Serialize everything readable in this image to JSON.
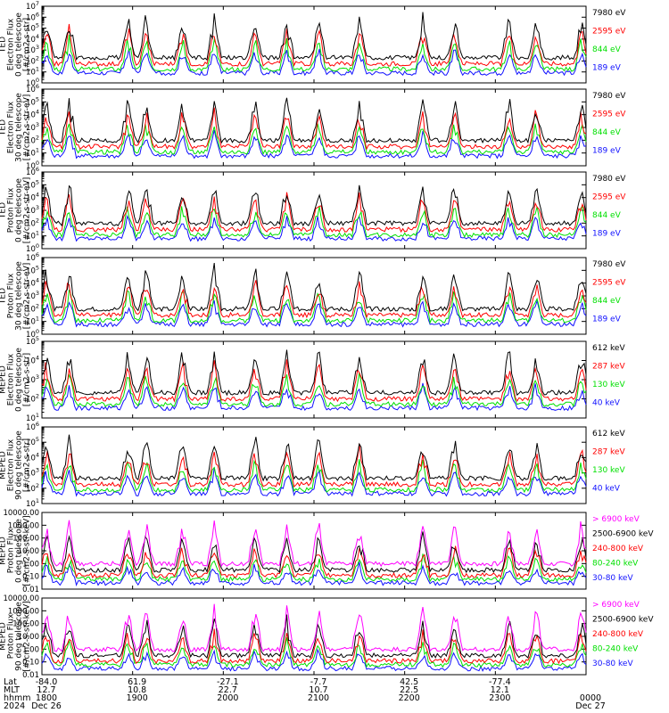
{
  "colors": {
    "blue": "#1010ff",
    "red": "#ff0000",
    "green": "#00e000",
    "black": "#000000",
    "magenta": "#ff00ff"
  },
  "panels": [
    {
      "ylabel": [
        "TED",
        "Electron Flux",
        "0 deg telescope",
        "[#/cm2-s-str]"
      ],
      "yticks": [
        "10^0",
        "10^1",
        "10^2",
        "10^3",
        "10^4",
        "10^5",
        "10^6",
        "10^7"
      ],
      "legend": [
        {
          "text": "7980 eV",
          "color": "black"
        },
        {
          "text": "2595 eV",
          "color": "red"
        },
        {
          "text": "844 eV",
          "color": "green"
        },
        {
          "text": "189 eV",
          "color": "blue"
        }
      ]
    },
    {
      "ylabel": [
        "TED",
        "Electron Flux",
        "30 deg telescope",
        "[#/cm2-s-str-eV]"
      ],
      "yticks": [
        "10^0",
        "10^1",
        "10^2",
        "10^3",
        "10^4",
        "10^5",
        "10^6"
      ],
      "legend": [
        {
          "text": "7980 eV",
          "color": "black"
        },
        {
          "text": "2595 eV",
          "color": "red"
        },
        {
          "text": "844 eV",
          "color": "green"
        },
        {
          "text": "189 eV",
          "color": "blue"
        }
      ]
    },
    {
      "ylabel": [
        "TED",
        "Proton Flux",
        "0 deg telescope",
        "[#/cm2-s-str-eV]"
      ],
      "yticks": [
        "10^0",
        "10^1",
        "10^2",
        "10^3",
        "10^4",
        "10^5",
        "10^6"
      ],
      "legend": [
        {
          "text": "7980 eV",
          "color": "black"
        },
        {
          "text": "2595 eV",
          "color": "red"
        },
        {
          "text": "844 eV",
          "color": "green"
        },
        {
          "text": "189 eV",
          "color": "blue"
        }
      ]
    },
    {
      "ylabel": [
        "TED",
        "Proton Flux",
        "30 deg telescope",
        "[#/cm2-s-str-eV]"
      ],
      "yticks": [
        "10^0",
        "10^1",
        "10^2",
        "10^3",
        "10^4",
        "10^5",
        "10^6"
      ],
      "legend": [
        {
          "text": "7980 eV",
          "color": "black"
        },
        {
          "text": "2595 eV",
          "color": "red"
        },
        {
          "text": "844 eV",
          "color": "green"
        },
        {
          "text": "189 eV",
          "color": "blue"
        }
      ]
    },
    {
      "ylabel": [
        "MEPED",
        "Electron Flux",
        "0 deg telescope",
        "[#/cm2-s-str]"
      ],
      "yticks": [
        "10^1",
        "10^2",
        "10^3",
        "10^4",
        "10^5"
      ],
      "legend": [
        {
          "text": "612 keV",
          "color": "black"
        },
        {
          "text": "287 keV",
          "color": "red"
        },
        {
          "text": "130 keV",
          "color": "green"
        },
        {
          "text": "40 keV",
          "color": "blue"
        }
      ]
    },
    {
      "ylabel": [
        "MEPED",
        "Electron Flux",
        "90 deg telescope",
        "[#/cm2-s-str]"
      ],
      "yticks": [
        "10^1",
        "10^2",
        "10^3",
        "10^4",
        "10^5",
        "10^6"
      ],
      "legend": [
        {
          "text": "612 keV",
          "color": "black"
        },
        {
          "text": "287 keV",
          "color": "red"
        },
        {
          "text": "130 keV",
          "color": "green"
        },
        {
          "text": "40 keV",
          "color": "blue"
        }
      ]
    },
    {
      "ylabel": [
        "MEPED",
        "Proton Flux",
        "0 deg telescope",
        "[#/cm2-s-str-keV]"
      ],
      "yticks": [
        "0.01",
        "0.10",
        "1.00",
        "10.00",
        "100.00",
        "1000.00",
        "10000.00"
      ],
      "legend": [
        {
          "text": "> 6900 keV",
          "color": "magenta"
        },
        {
          "text": "2500-6900 keV",
          "color": "black"
        },
        {
          "text": "240-800 keV",
          "color": "red"
        },
        {
          "text": "80-240 keV",
          "color": "green"
        },
        {
          "text": "30-80 keV",
          "color": "blue"
        }
      ]
    },
    {
      "ylabel": [
        "MEPED",
        "Proton Flux",
        "90 deg telescope",
        "[#/cm2-s-str-keV]"
      ],
      "yticks": [
        "0.01",
        "0.10",
        "1.00",
        "10.00",
        "100.00",
        "1000.00",
        "10000.00"
      ],
      "legend": [
        {
          "text": "> 6900 keV",
          "color": "magenta"
        },
        {
          "text": "2500-6900 keV",
          "color": "black"
        },
        {
          "text": "240-800 keV",
          "color": "red"
        },
        {
          "text": "80-240 keV",
          "color": "green"
        },
        {
          "text": "30-80 keV",
          "color": "blue"
        }
      ]
    }
  ],
  "footer": {
    "row_labels": [
      "Lat",
      "MLT",
      "hhmm",
      "2024"
    ],
    "columns": [
      {
        "lat": "-84.0",
        "mlt": "12.7",
        "hhmm": "1800",
        "date": "Dec 26"
      },
      {
        "lat": "61.9",
        "mlt": "10.8",
        "hhmm": "1900",
        "date": ""
      },
      {
        "lat": "-27.1",
        "mlt": "22.7",
        "hhmm": "2000",
        "date": ""
      },
      {
        "lat": "-7.7",
        "mlt": "10.7",
        "hhmm": "2100",
        "date": ""
      },
      {
        "lat": "42.5",
        "mlt": "22.5",
        "hhmm": "2200",
        "date": ""
      },
      {
        "lat": "-77.4",
        "mlt": "12.1",
        "hhmm": "2300",
        "date": ""
      },
      {
        "lat": "",
        "mlt": "",
        "hhmm": "0000",
        "date": "Dec 27"
      }
    ]
  },
  "chart_data": {
    "type": "line",
    "time_range": [
      "1800",
      "0000"
    ],
    "x_ticks": [
      "1800",
      "1900",
      "2000",
      "2100",
      "2200",
      "2300",
      "0000"
    ],
    "y_scale": "log",
    "series_per_panel": [
      [
        "7980 eV",
        "2595 eV",
        "844 eV",
        "189 eV"
      ],
      [
        "7980 eV",
        "2595 eV",
        "844 eV",
        "189 eV"
      ],
      [
        "7980 eV",
        "2595 eV",
        "844 eV",
        "189 eV"
      ],
      [
        "7980 eV",
        "2595 eV",
        "844 eV",
        "189 eV"
      ],
      [
        "612 keV",
        "287 keV",
        "130 keV",
        "40 keV"
      ],
      [
        "612 keV",
        "287 keV",
        "130 keV",
        "40 keV"
      ],
      [
        "> 6900 keV",
        "2500-6900 keV",
        "240-800 keV",
        "80-240 keV",
        "30-80 keV"
      ],
      [
        "> 6900 keV",
        "2500-6900 keV",
        "240-800 keV",
        "80-240 keV",
        "30-80 keV"
      ]
    ]
  }
}
